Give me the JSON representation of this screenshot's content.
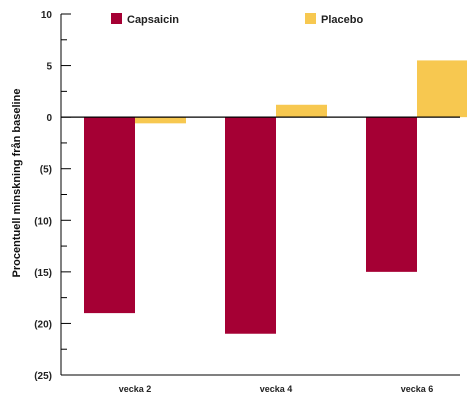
{
  "chart_data": {
    "type": "bar",
    "categories": [
      "vecka 2",
      "vecka 4",
      "vecka 6"
    ],
    "series": [
      {
        "name": "Capsaicin",
        "color": "#a50034",
        "values": [
          -19,
          -21,
          -15
        ]
      },
      {
        "name": "Placebo",
        "color": "#f7c850",
        "values": [
          -0.6,
          1.2,
          5.5
        ]
      }
    ],
    "ylabel": "Procentuell minskning från baseline",
    "xlabel": "",
    "ylim": [
      -25,
      10
    ],
    "y_ticks": [
      10,
      5,
      0,
      -5,
      -10,
      -15,
      -20,
      -25
    ],
    "y_tick_labels": [
      "10",
      "5",
      "0",
      "(5)",
      "(10)",
      "(15)",
      "(20)",
      "(25)"
    ],
    "legend_position": "top",
    "grid": false
  }
}
